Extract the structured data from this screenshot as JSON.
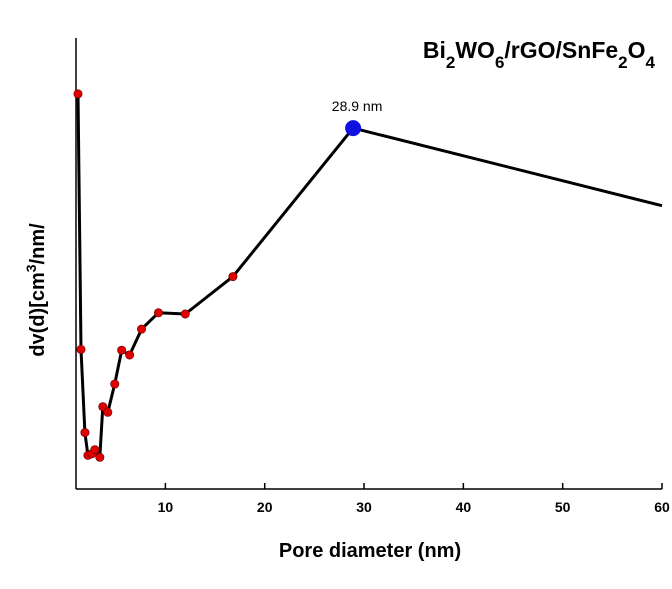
{
  "chart_data": {
    "type": "line",
    "title": {
      "parts": [
        {
          "text": "Bi",
          "sub": false
        },
        {
          "text": "2",
          "sub": true
        },
        {
          "text": "WO",
          "sub": false
        },
        {
          "text": "6",
          "sub": true
        },
        {
          "text": "/rGO/SnFe",
          "sub": false
        },
        {
          "text": "2",
          "sub": true
        },
        {
          "text": "O",
          "sub": false
        },
        {
          "text": "4",
          "sub": true
        }
      ]
    },
    "xlabel": "Pore diameter (nm)",
    "ylabel": {
      "before": "dv(d)[cm",
      "sup": "3",
      "after": "/nm/"
    },
    "xlim": [
      1,
      60
    ],
    "ylim": [
      0,
      1
    ],
    "xticks": [
      10,
      20,
      30,
      40,
      50,
      60
    ],
    "yticks_shown": false,
    "grid": false,
    "series": [
      {
        "color": "#000000",
        "marker_color": "#e00000",
        "x": [
          1.2,
          1.5,
          1.9,
          2.2,
          2.6,
          2.9,
          3.4,
          3.7,
          4.2,
          4.9,
          5.6,
          6.4,
          7.6,
          9.3,
          12,
          16.8,
          28.9,
          60
        ],
        "y": [
          0.955,
          0.313,
          0.104,
          0.047,
          0.051,
          0.061,
          0.042,
          0.169,
          0.155,
          0.226,
          0.311,
          0.299,
          0.364,
          0.405,
          0.402,
          0.496,
          0.869,
          0.674
        ],
        "markers": [
          true,
          true,
          true,
          true,
          true,
          true,
          true,
          true,
          true,
          true,
          true,
          true,
          true,
          true,
          true,
          true,
          false,
          false
        ]
      }
    ],
    "highlight": {
      "x": 28.9,
      "y": 0.869,
      "color": "#1010e0"
    },
    "annotations": [
      {
        "text": "28.9 nm",
        "x": 28.9,
        "y": 0.869
      }
    ]
  }
}
